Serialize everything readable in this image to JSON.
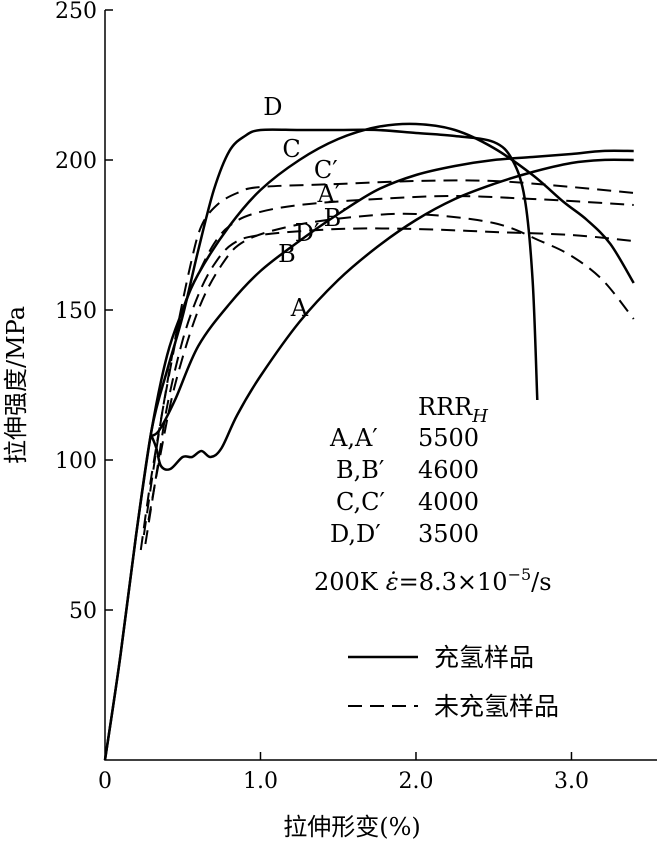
{
  "chart_data": {
    "type": "line",
    "xlabel": "拉伸形变(%)",
    "ylabel": "拉伸强度/MPa",
    "xlim": [
      0,
      3.55
    ],
    "ylim": [
      0,
      250
    ],
    "xticks": [
      "0",
      "1.0",
      "2.0",
      "3.0"
    ],
    "xtick_values": [
      0,
      1.0,
      2.0,
      3.0
    ],
    "yticks": [
      "50",
      "100",
      "150",
      "200",
      "250"
    ],
    "ytick_values": [
      50,
      100,
      150,
      200,
      250
    ],
    "grid": false,
    "table": {
      "header": "RRR",
      "header_sub": "H",
      "rows": [
        {
          "label": "A,A′",
          "value": "5500"
        },
        {
          "label": "B,B′",
          "value": "4600"
        },
        {
          "label": "C,C′",
          "value": "4000"
        },
        {
          "label": "D,D′",
          "value": "3500"
        }
      ]
    },
    "condition": {
      "temp": "200K",
      "rate_symbol": "ε̇",
      "rate_value": "=8.3×10",
      "rate_exp": "−5",
      "rate_unit": "/s"
    },
    "legend": {
      "position": "bottom-right",
      "items": [
        {
          "label": "充氢样品",
          "style": "solid"
        },
        {
          "label": "未充氢样品",
          "style": "dashed"
        }
      ]
    },
    "series": [
      {
        "name": "A",
        "style": "solid",
        "label_at": [
          1.25,
          148
        ],
        "points": [
          [
            0.3,
            108
          ],
          [
            0.33,
            104
          ],
          [
            0.36,
            98
          ],
          [
            0.42,
            97
          ],
          [
            0.5,
            101
          ],
          [
            0.56,
            101
          ],
          [
            0.62,
            103
          ],
          [
            0.68,
            101
          ],
          [
            0.75,
            104
          ],
          [
            0.85,
            115
          ],
          [
            1.0,
            128
          ],
          [
            1.25,
            146
          ],
          [
            1.5,
            160
          ],
          [
            1.75,
            171
          ],
          [
            2.0,
            180
          ],
          [
            2.25,
            187
          ],
          [
            2.5,
            192
          ],
          [
            2.75,
            196
          ],
          [
            3.0,
            199
          ],
          [
            3.2,
            200
          ],
          [
            3.4,
            200
          ]
        ]
      },
      {
        "name": "B",
        "style": "solid",
        "label_at": [
          1.17,
          166
        ],
        "points": [
          [
            0.3,
            108
          ],
          [
            0.35,
            110
          ],
          [
            0.45,
            120
          ],
          [
            0.6,
            138
          ],
          [
            0.8,
            152
          ],
          [
            1.0,
            163
          ],
          [
            1.25,
            173
          ],
          [
            1.5,
            182
          ],
          [
            1.75,
            190
          ],
          [
            2.0,
            195
          ],
          [
            2.25,
            198
          ],
          [
            2.5,
            200
          ],
          [
            2.75,
            201
          ],
          [
            3.0,
            202
          ],
          [
            3.2,
            203
          ],
          [
            3.4,
            203
          ]
        ]
      },
      {
        "name": "C",
        "style": "solid",
        "label_at": [
          1.2,
          201
        ],
        "points": [
          [
            0.0,
            0
          ],
          [
            0.1,
            35
          ],
          [
            0.2,
            75
          ],
          [
            0.3,
            110
          ],
          [
            0.4,
            135
          ],
          [
            0.5,
            150
          ],
          [
            0.6,
            162
          ],
          [
            0.8,
            178
          ],
          [
            1.0,
            190
          ],
          [
            1.25,
            200
          ],
          [
            1.5,
            207
          ],
          [
            1.75,
            211
          ],
          [
            2.0,
            212
          ],
          [
            2.25,
            210
          ],
          [
            2.5,
            204
          ],
          [
            2.75,
            195
          ],
          [
            2.95,
            186
          ],
          [
            3.1,
            180
          ],
          [
            3.25,
            172
          ],
          [
            3.4,
            159
          ]
        ]
      },
      {
        "name": "D",
        "style": "solid",
        "label_at": [
          1.08,
          215
        ],
        "points": [
          [
            0.0,
            0
          ],
          [
            0.1,
            35
          ],
          [
            0.2,
            75
          ],
          [
            0.3,
            110
          ],
          [
            0.4,
            130
          ],
          [
            0.5,
            148
          ],
          [
            0.6,
            170
          ],
          [
            0.7,
            190
          ],
          [
            0.8,
            203
          ],
          [
            0.9,
            208
          ],
          [
            1.0,
            210
          ],
          [
            1.25,
            210
          ],
          [
            1.5,
            210
          ],
          [
            1.75,
            210
          ],
          [
            2.0,
            209
          ],
          [
            2.25,
            208
          ],
          [
            2.5,
            206
          ],
          [
            2.62,
            200
          ],
          [
            2.7,
            187
          ],
          [
            2.75,
            160
          ],
          [
            2.78,
            120
          ]
        ]
      },
      {
        "name": "A′",
        "style": "dashed",
        "label_at": [
          1.44,
          186
        ],
        "points": [
          [
            0.23,
            70
          ],
          [
            0.3,
            95
          ],
          [
            0.4,
            125
          ],
          [
            0.5,
            150
          ],
          [
            0.6,
            162
          ],
          [
            0.7,
            172
          ],
          [
            0.8,
            178
          ],
          [
            0.95,
            182
          ],
          [
            1.25,
            185
          ],
          [
            1.75,
            187
          ],
          [
            2.25,
            188
          ],
          [
            2.75,
            187
          ],
          [
            3.1,
            186
          ],
          [
            3.4,
            185
          ]
        ]
      },
      {
        "name": "B′",
        "style": "dashed",
        "label_at": [
          1.48,
          178
        ],
        "points": [
          [
            0.28,
            80
          ],
          [
            0.35,
            100
          ],
          [
            0.45,
            125
          ],
          [
            0.6,
            150
          ],
          [
            0.75,
            165
          ],
          [
            0.9,
            173
          ],
          [
            1.2,
            178
          ],
          [
            1.6,
            181
          ],
          [
            2.0,
            182
          ],
          [
            2.5,
            179
          ],
          [
            2.8,
            173
          ],
          [
            3.0,
            168
          ],
          [
            3.2,
            160
          ],
          [
            3.4,
            147
          ]
        ]
      },
      {
        "name": "C′",
        "style": "dashed",
        "label_at": [
          1.42,
          194
        ],
        "points": [
          [
            0.25,
            75
          ],
          [
            0.35,
            110
          ],
          [
            0.45,
            140
          ],
          [
            0.55,
            165
          ],
          [
            0.62,
            178
          ],
          [
            0.72,
            185
          ],
          [
            0.85,
            189
          ],
          [
            1.0,
            191
          ],
          [
            1.5,
            192
          ],
          [
            2.0,
            193
          ],
          [
            2.5,
            193
          ],
          [
            3.0,
            191
          ],
          [
            3.4,
            189
          ]
        ]
      },
      {
        "name": "D′",
        "style": "dashed",
        "label_at": [
          1.3,
          173
        ],
        "points": [
          [
            0.26,
            72
          ],
          [
            0.33,
            95
          ],
          [
            0.4,
            118
          ],
          [
            0.5,
            140
          ],
          [
            0.6,
            155
          ],
          [
            0.7,
            165
          ],
          [
            0.82,
            172
          ],
          [
            1.0,
            175
          ],
          [
            1.5,
            177
          ],
          [
            2.0,
            177
          ],
          [
            2.5,
            176
          ],
          [
            3.0,
            175
          ],
          [
            3.4,
            173
          ]
        ]
      }
    ]
  }
}
